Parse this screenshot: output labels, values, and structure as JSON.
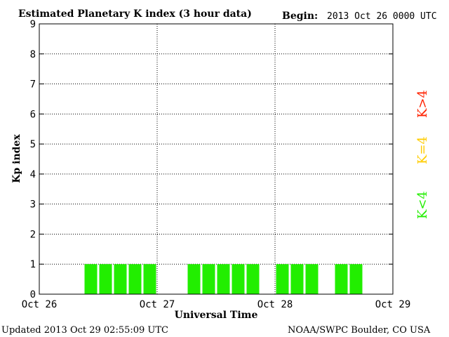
{
  "header": {
    "title": "Estimated Planetary K index (3 hour data)",
    "begin_label": "Begin:",
    "begin_value": "2013 Oct 26 0000 UTC"
  },
  "footer": {
    "updated": "Updated 2013 Oct 29 02:55:09 UTC",
    "source": "NOAA/SWPC Boulder, CO USA"
  },
  "legend": [
    {
      "label": "K>4",
      "color": "#ff2200"
    },
    {
      "label": "K=4",
      "color": "#ffcc00"
    },
    {
      "label": "K<4",
      "color": "#22ee00"
    }
  ],
  "chart_data": {
    "type": "bar",
    "title": "Estimated Planetary K index (3 hour data)",
    "xlabel": "Universal Time",
    "ylabel": "Kp index",
    "ylim": [
      0,
      9
    ],
    "yticks": [
      0,
      1,
      2,
      3,
      4,
      5,
      6,
      7,
      8,
      9
    ],
    "xlim_hours": [
      0,
      72
    ],
    "xtick_labels": [
      "Oct 26",
      "Oct 27",
      "Oct 28",
      "Oct 29"
    ],
    "grid": "dotted",
    "bar_color": "#22ee00",
    "bar_width_hours": 3,
    "categories": [
      "Oct 26 00",
      "Oct 26 03",
      "Oct 26 06",
      "Oct 26 09",
      "Oct 26 12",
      "Oct 26 15",
      "Oct 26 18",
      "Oct 26 21",
      "Oct 27 00",
      "Oct 27 03",
      "Oct 27 06",
      "Oct 27 09",
      "Oct 27 12",
      "Oct 27 15",
      "Oct 27 18",
      "Oct 27 21",
      "Oct 28 00",
      "Oct 28 03",
      "Oct 28 06",
      "Oct 28 09",
      "Oct 28 12",
      "Oct 28 15",
      "Oct 28 18",
      "Oct 28 21"
    ],
    "values": [
      0,
      0,
      0,
      1,
      1,
      1,
      1,
      1,
      0,
      0,
      1,
      1,
      1,
      1,
      1,
      0,
      1,
      1,
      1,
      0,
      1,
      1,
      0,
      0
    ]
  }
}
